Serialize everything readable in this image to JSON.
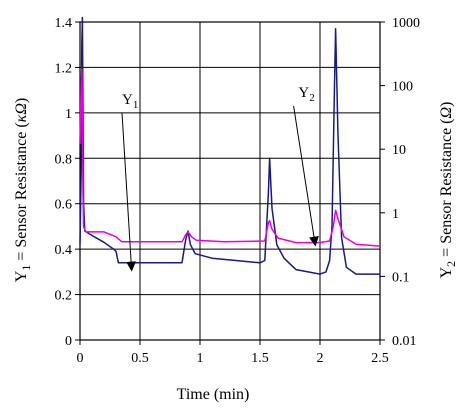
{
  "chart_data": {
    "type": "line",
    "xlabel": "Time (min)",
    "x_range": [
      0,
      2.5
    ],
    "x_ticks": [
      "0",
      "0.5",
      "1",
      "1.5",
      "2",
      "2.5"
    ],
    "grid": true,
    "y_left": {
      "label_parts": [
        "Y",
        "1",
        " = Sensor Resistance (",
        "κΩ",
        ")"
      ],
      "range": [
        0,
        1.4
      ],
      "ticks": [
        "0",
        "0.2",
        "0.4",
        "0.6",
        "0.8",
        "1",
        "1.2",
        "1.4"
      ]
    },
    "y_right": {
      "label_parts": [
        "Y",
        "2",
        " = Sensor Resistance (",
        "Ω",
        ")"
      ],
      "scale": "log",
      "range": [
        0.01,
        1000
      ],
      "ticks": [
        "0.01",
        "0.1",
        "1",
        "10",
        "100",
        "1000"
      ]
    },
    "series": [
      {
        "axis": "left",
        "color": "#1a1a80",
        "points": [
          [
            0.0,
            0.42
          ],
          [
            0.01,
            0.75
          ],
          [
            0.015,
            1.3
          ],
          [
            0.02,
            1.42
          ],
          [
            0.025,
            1.0
          ],
          [
            0.03,
            0.6
          ],
          [
            0.04,
            0.48
          ],
          [
            0.1,
            0.46
          ],
          [
            0.2,
            0.43
          ],
          [
            0.28,
            0.4
          ],
          [
            0.3,
            0.39
          ],
          [
            0.32,
            0.34
          ],
          [
            0.5,
            0.34
          ],
          [
            0.7,
            0.34
          ],
          [
            0.85,
            0.34
          ],
          [
            0.88,
            0.44
          ],
          [
            0.9,
            0.48
          ],
          [
            0.92,
            0.42
          ],
          [
            0.96,
            0.38
          ],
          [
            1.1,
            0.36
          ],
          [
            1.3,
            0.35
          ],
          [
            1.5,
            0.34
          ],
          [
            1.54,
            0.35
          ],
          [
            1.57,
            0.65
          ],
          [
            1.58,
            0.8
          ],
          [
            1.6,
            0.58
          ],
          [
            1.64,
            0.42
          ],
          [
            1.7,
            0.36
          ],
          [
            1.8,
            0.31
          ],
          [
            1.9,
            0.3
          ],
          [
            2.0,
            0.29
          ],
          [
            2.05,
            0.3
          ],
          [
            2.08,
            0.35
          ],
          [
            2.1,
            0.5
          ],
          [
            2.12,
            1.1
          ],
          [
            2.13,
            1.37
          ],
          [
            2.15,
            0.9
          ],
          [
            2.18,
            0.45
          ],
          [
            2.22,
            0.32
          ],
          [
            2.3,
            0.29
          ],
          [
            2.4,
            0.29
          ],
          [
            2.5,
            0.29
          ]
        ]
      },
      {
        "axis": "right",
        "color": "#e600e6",
        "points": [
          [
            0.0,
            12
          ],
          [
            0.01,
            120
          ],
          [
            0.015,
            180
          ],
          [
            0.02,
            30
          ],
          [
            0.025,
            2
          ],
          [
            0.03,
            0.6
          ],
          [
            0.05,
            0.5
          ],
          [
            0.2,
            0.5
          ],
          [
            0.3,
            0.42
          ],
          [
            0.35,
            0.35
          ],
          [
            0.85,
            0.35
          ],
          [
            0.88,
            0.45
          ],
          [
            0.9,
            0.5
          ],
          [
            0.93,
            0.42
          ],
          [
            0.97,
            0.37
          ],
          [
            1.2,
            0.35
          ],
          [
            1.54,
            0.36
          ],
          [
            1.57,
            0.7
          ],
          [
            1.58,
            0.75
          ],
          [
            1.6,
            0.55
          ],
          [
            1.65,
            0.4
          ],
          [
            1.8,
            0.34
          ],
          [
            2.0,
            0.34
          ],
          [
            2.08,
            0.36
          ],
          [
            2.11,
            0.6
          ],
          [
            2.13,
            1.1
          ],
          [
            2.15,
            0.8
          ],
          [
            2.2,
            0.42
          ],
          [
            2.3,
            0.32
          ],
          [
            2.5,
            0.3
          ]
        ]
      }
    ],
    "annotations": [
      {
        "label_parts": [
          "Y",
          "1"
        ],
        "text_at": [
          0.35,
          1.04
        ],
        "arrow_from": [
          0.35,
          1.0
        ],
        "arrow_to": [
          0.43,
          0.31
        ]
      },
      {
        "label_parts": [
          "Y",
          "2"
        ],
        "text_at": [
          1.82,
          1.07
        ],
        "arrow_from": [
          1.78,
          1.03
        ],
        "arrow_to": [
          1.96,
          0.42
        ]
      }
    ]
  }
}
